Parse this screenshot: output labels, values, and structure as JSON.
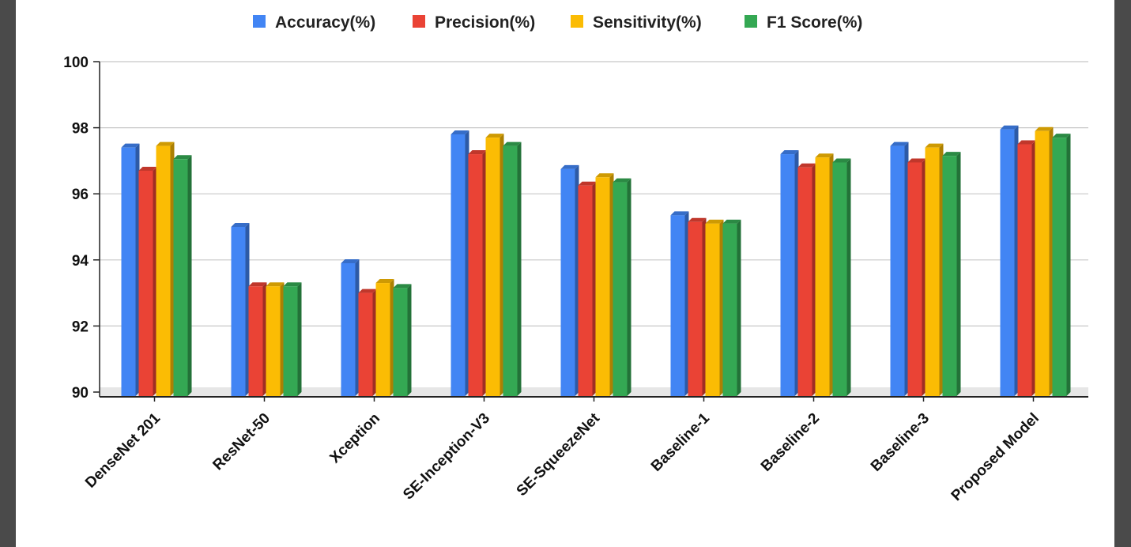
{
  "chart_data": {
    "type": "bar",
    "title": "",
    "xlabel": "",
    "ylabel": "",
    "ylim": [
      90,
      100
    ],
    "yticks": [
      90,
      92,
      94,
      96,
      98,
      100
    ],
    "grid": true,
    "legend_position": "top",
    "categories": [
      "DenseNet 201",
      "ResNet-50",
      "Xception",
      "SE-Inception-V3",
      "SE-SqueezeNet",
      "Baseline-1",
      "Baseline-2",
      "Baseline-3",
      "Proposed Model"
    ],
    "series": [
      {
        "name": "Accuracy(%)",
        "color": "#4285F4",
        "values": [
          97.4,
          95.0,
          93.9,
          97.8,
          96.75,
          95.35,
          97.2,
          97.45,
          97.95
        ]
      },
      {
        "name": "Precision(%)",
        "color": "#EA4335",
        "values": [
          96.7,
          93.2,
          93.0,
          97.2,
          96.25,
          95.15,
          96.8,
          96.95,
          97.5
        ]
      },
      {
        "name": "Sensitivity(%)",
        "color": "#FBBC04",
        "values": [
          97.45,
          93.2,
          93.3,
          97.7,
          96.5,
          95.1,
          97.1,
          97.4,
          97.9
        ]
      },
      {
        "name": "F1 Score(%)",
        "color": "#34A853",
        "values": [
          97.05,
          93.2,
          93.15,
          97.45,
          96.35,
          95.1,
          96.95,
          97.15,
          97.7
        ]
      }
    ]
  }
}
